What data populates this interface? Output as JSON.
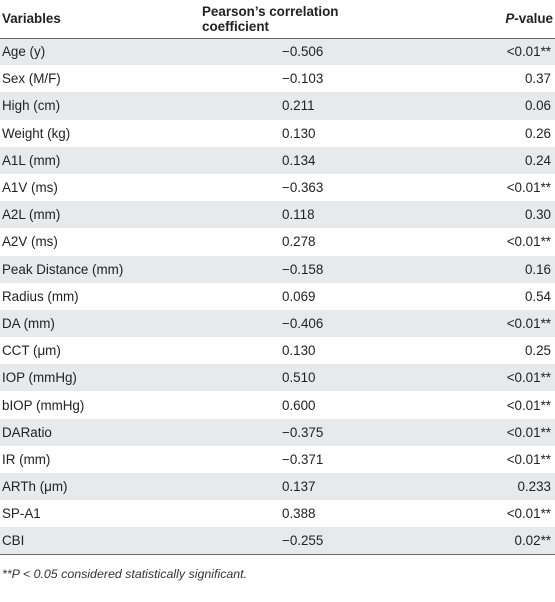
{
  "table": {
    "headers": {
      "variables": "Variables",
      "coefficient": "Pearson’s correlation coefficient",
      "pvalue": "P-value"
    },
    "rows": [
      {
        "variable": "Age (y)",
        "coefficient": "−0.506",
        "pvalue": "<0.01**"
      },
      {
        "variable": "Sex (M/F)",
        "coefficient": "−0.103",
        "pvalue": "0.37"
      },
      {
        "variable": "High (cm)",
        "coefficient": "0.211",
        "pvalue": "0.06"
      },
      {
        "variable": "Weight (kg)",
        "coefficient": "0.130",
        "pvalue": "0.26"
      },
      {
        "variable": "A1L (mm)",
        "coefficient": "0.134",
        "pvalue": "0.24"
      },
      {
        "variable": "A1V (ms)",
        "coefficient": "−0.363",
        "pvalue": "<0.01**"
      },
      {
        "variable": "A2L (mm)",
        "coefficient": "0.118",
        "pvalue": "0.30"
      },
      {
        "variable": "A2V (ms)",
        "coefficient": "0.278",
        "pvalue": "<0.01**"
      },
      {
        "variable": "Peak Distance (mm)",
        "coefficient": "−0.158",
        "pvalue": "0.16"
      },
      {
        "variable": "Radius (mm)",
        "coefficient": "0.069",
        "pvalue": "0.54"
      },
      {
        "variable": "DA (mm)",
        "coefficient": "−0.406",
        "pvalue": "<0.01**"
      },
      {
        "variable": "CCT (μm)",
        "coefficient": "0.130",
        "pvalue": "0.25"
      },
      {
        "variable": "IOP (mmHg)",
        "coefficient": "0.510",
        "pvalue": "<0.01**"
      },
      {
        "variable": "bIOP (mmHg)",
        "coefficient": "0.600",
        "pvalue": "<0.01**"
      },
      {
        "variable": "DARatio",
        "coefficient": "−0.375",
        "pvalue": "<0.01**"
      },
      {
        "variable": "IR (mm)",
        "coefficient": "−0.371",
        "pvalue": "<0.01**"
      },
      {
        "variable": "ARTh (μm)",
        "coefficient": "0.137",
        "pvalue": "0.233"
      },
      {
        "variable": "SP-A1",
        "coefficient": "0.388",
        "pvalue": "<0.01**"
      },
      {
        "variable": "CBI",
        "coefficient": "−0.255",
        "pvalue": "0.02**"
      }
    ],
    "footnote": "**P < 0.05 considered statistically significant."
  }
}
